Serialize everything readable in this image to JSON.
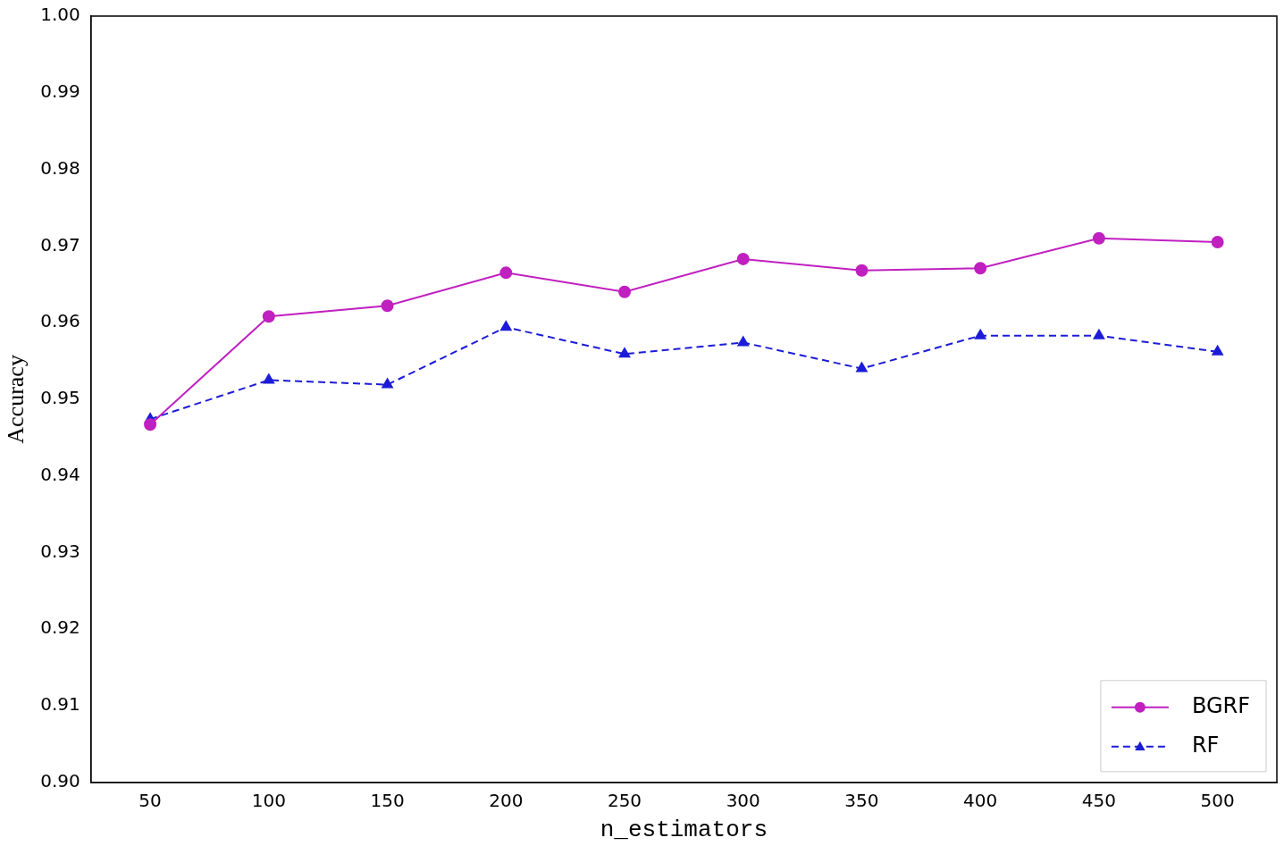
{
  "chart_data": {
    "type": "line",
    "x_label": "n_estimators",
    "y_label": "Accuracy",
    "categories": [
      50,
      100,
      150,
      200,
      250,
      300,
      350,
      400,
      450,
      500
    ],
    "series": [
      {
        "name": "BGRF",
        "color": "#c020c0",
        "marker": "circle",
        "line_style": "solid",
        "values": [
          0.9467,
          0.9608,
          0.9622,
          0.9665,
          0.964,
          0.9683,
          0.9668,
          0.9671,
          0.971,
          0.9705
        ]
      },
      {
        "name": "RF",
        "color": "#1c1cd8",
        "marker": "triangle",
        "line_style": "dashed",
        "values": [
          0.9474,
          0.9525,
          0.9519,
          0.9594,
          0.9559,
          0.9574,
          0.954,
          0.9583,
          0.9583,
          0.9562
        ]
      }
    ],
    "ylim": [
      0.9,
      1.0
    ],
    "yticks": [
      {
        "value": 0.9,
        "label": "0.90"
      },
      0.91,
      0.92,
      0.93,
      0.94,
      0.95,
      0.96,
      0.97,
      0.98,
      0.99,
      {
        "value": 1,
        "label": "1.00"
      }
    ],
    "grid": false,
    "legend": "lower right"
  }
}
